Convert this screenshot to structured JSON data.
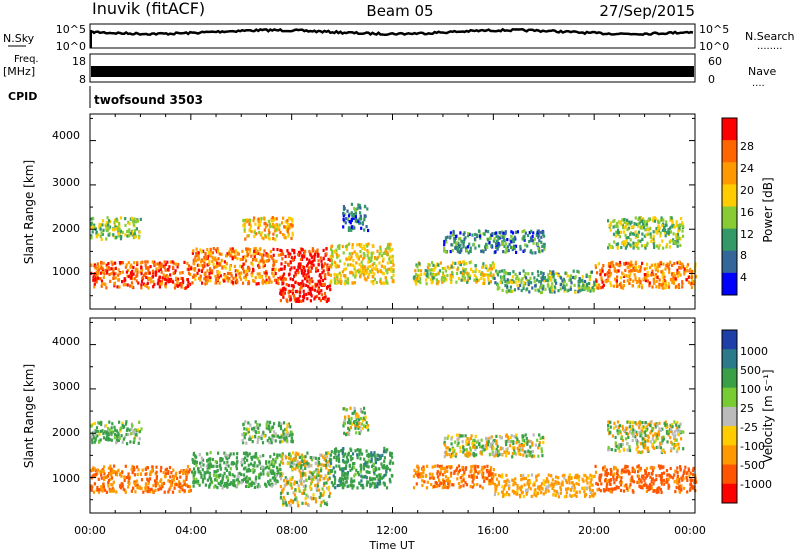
{
  "header": {
    "station": "Inuvik (fitACF)",
    "beam": "Beam 05",
    "date": "27/Sep/2015"
  },
  "noise_panel": {
    "left_label": "N.Sky",
    "left_ticks": [
      "10^5",
      "10^0"
    ],
    "right_ticks": [
      "10^5",
      "10^0"
    ],
    "right_label": "N.Search",
    "right_legend": "........"
  },
  "freq_panel": {
    "left_label_1": "Freq.",
    "left_label_2": "[MHz]",
    "left_ticks": [
      "18",
      "8"
    ],
    "right_ticks": [
      "60",
      "0"
    ],
    "right_label": "Nave",
    "right_legend": "...."
  },
  "cpid_panel": {
    "label": "CPID",
    "mode": "twofsound 3503"
  },
  "x_axis": {
    "ticks": [
      "00:00",
      "04:00",
      "08:00",
      "12:00",
      "16:00",
      "20:00",
      "00:00"
    ],
    "label": "Time UT"
  },
  "power_panel": {
    "ylabel": "Slant Range [km]",
    "yticks": [
      "4000",
      "3000",
      "2000",
      "1000"
    ],
    "colorbar_label": "Power [dB]",
    "colorbar_ticks": [
      "28",
      "24",
      "20",
      "16",
      "12",
      "8",
      "4"
    ],
    "colors": [
      "#ff0000",
      "#ff6600",
      "#ff9900",
      "#ffcc00",
      "#88cc33",
      "#339966",
      "#336699",
      "#0000ff"
    ]
  },
  "velocity_panel": {
    "ylabel": "Slant Range [km]",
    "yticks": [
      "4000",
      "3000",
      "2000",
      "1000"
    ],
    "colorbar_label": "Velocity [m s⁻¹]",
    "colorbar_ticks": [
      "1000",
      "500",
      "100",
      "25",
      "-25",
      "-100",
      "-500",
      "-1000"
    ],
    "colors": [
      "#1f3fa8",
      "#2a7a8a",
      "#3aa048",
      "#78cc33",
      "#bbbbbb",
      "#ffcc00",
      "#ff9900",
      "#ff5500",
      "#ff0000"
    ]
  },
  "chart_data": [
    {
      "type": "line",
      "title": "N.Sky / N.Search",
      "x_range": [
        "00:00",
        "00:00"
      ],
      "y_scale": "log",
      "ylim": [
        1,
        100000
      ]
    },
    {
      "type": "line",
      "title": "Freq. [MHz] / Nave",
      "ylim": [
        8,
        18
      ],
      "ylim_right": [
        0,
        60
      ]
    },
    {
      "type": "heatmap",
      "title": "Power [dB]",
      "xlabel": "Time UT",
      "ylabel": "Slant Range [km]",
      "x_range_hours": [
        0,
        24
      ],
      "ylim": [
        200,
        4600
      ],
      "colorbar_range": [
        0,
        32
      ],
      "bands": [
        {
          "t0": 0.0,
          "t1": 4.0,
          "r0": 700,
          "r1": 1300,
          "value": 26
        },
        {
          "t0": 4.0,
          "t1": 7.5,
          "r0": 800,
          "r1": 1600,
          "value": 24
        },
        {
          "t0": 7.5,
          "t1": 9.5,
          "r0": 400,
          "r1": 1600,
          "value": 30
        },
        {
          "t0": 9.5,
          "t1": 12.0,
          "r0": 800,
          "r1": 1700,
          "value": 18
        },
        {
          "t0": 12.8,
          "t1": 16.0,
          "r0": 800,
          "r1": 1300,
          "value": 16
        },
        {
          "t0": 16.0,
          "t1": 20.0,
          "r0": 600,
          "r1": 1100,
          "value": 12
        },
        {
          "t0": 20.0,
          "t1": 24.0,
          "r0": 700,
          "r1": 1300,
          "value": 24
        },
        {
          "t0": 0.0,
          "t1": 2.0,
          "r0": 1800,
          "r1": 2300,
          "value": 14
        },
        {
          "t0": 6.0,
          "t1": 8.0,
          "r0": 1800,
          "r1": 2300,
          "value": 20
        },
        {
          "t0": 10.0,
          "t1": 11.0,
          "r0": 2000,
          "r1": 2600,
          "value": 8
        },
        {
          "t0": 14.0,
          "t1": 18.0,
          "r0": 1500,
          "r1": 2000,
          "value": 8
        },
        {
          "t0": 20.5,
          "t1": 23.5,
          "r0": 1600,
          "r1": 2300,
          "value": 14
        }
      ]
    },
    {
      "type": "heatmap",
      "title": "Velocity [m s⁻¹]",
      "xlabel": "Time UT",
      "ylabel": "Slant Range [km]",
      "x_range_hours": [
        0,
        24
      ],
      "ylim": [
        200,
        4600
      ],
      "colorbar_range": [
        -1000,
        1000
      ],
      "bands": [
        {
          "t0": 0.0,
          "t1": 4.0,
          "r0": 700,
          "r1": 1300,
          "value": -300
        },
        {
          "t0": 4.0,
          "t1": 7.5,
          "r0": 800,
          "r1": 1600,
          "value": 150
        },
        {
          "t0": 7.5,
          "t1": 9.5,
          "r0": 400,
          "r1": 1600,
          "value": 0
        },
        {
          "t0": 9.5,
          "t1": 12.0,
          "r0": 800,
          "r1": 1700,
          "value": 200
        },
        {
          "t0": 12.8,
          "t1": 16.0,
          "r0": 800,
          "r1": 1300,
          "value": -300
        },
        {
          "t0": 16.0,
          "t1": 20.0,
          "r0": 600,
          "r1": 1100,
          "value": -150
        },
        {
          "t0": 20.0,
          "t1": 24.0,
          "r0": 700,
          "r1": 1300,
          "value": -400
        },
        {
          "t0": 0.0,
          "t1": 2.0,
          "r0": 1800,
          "r1": 2300,
          "value": 100
        },
        {
          "t0": 6.0,
          "t1": 8.0,
          "r0": 1800,
          "r1": 2300,
          "value": 100
        },
        {
          "t0": 10.0,
          "t1": 11.0,
          "r0": 2000,
          "r1": 2600,
          "value": 0
        },
        {
          "t0": 14.0,
          "t1": 18.0,
          "r0": 1500,
          "r1": 2000,
          "value": 0
        },
        {
          "t0": 20.5,
          "t1": 23.5,
          "r0": 1600,
          "r1": 2300,
          "value": 0
        }
      ]
    }
  ]
}
